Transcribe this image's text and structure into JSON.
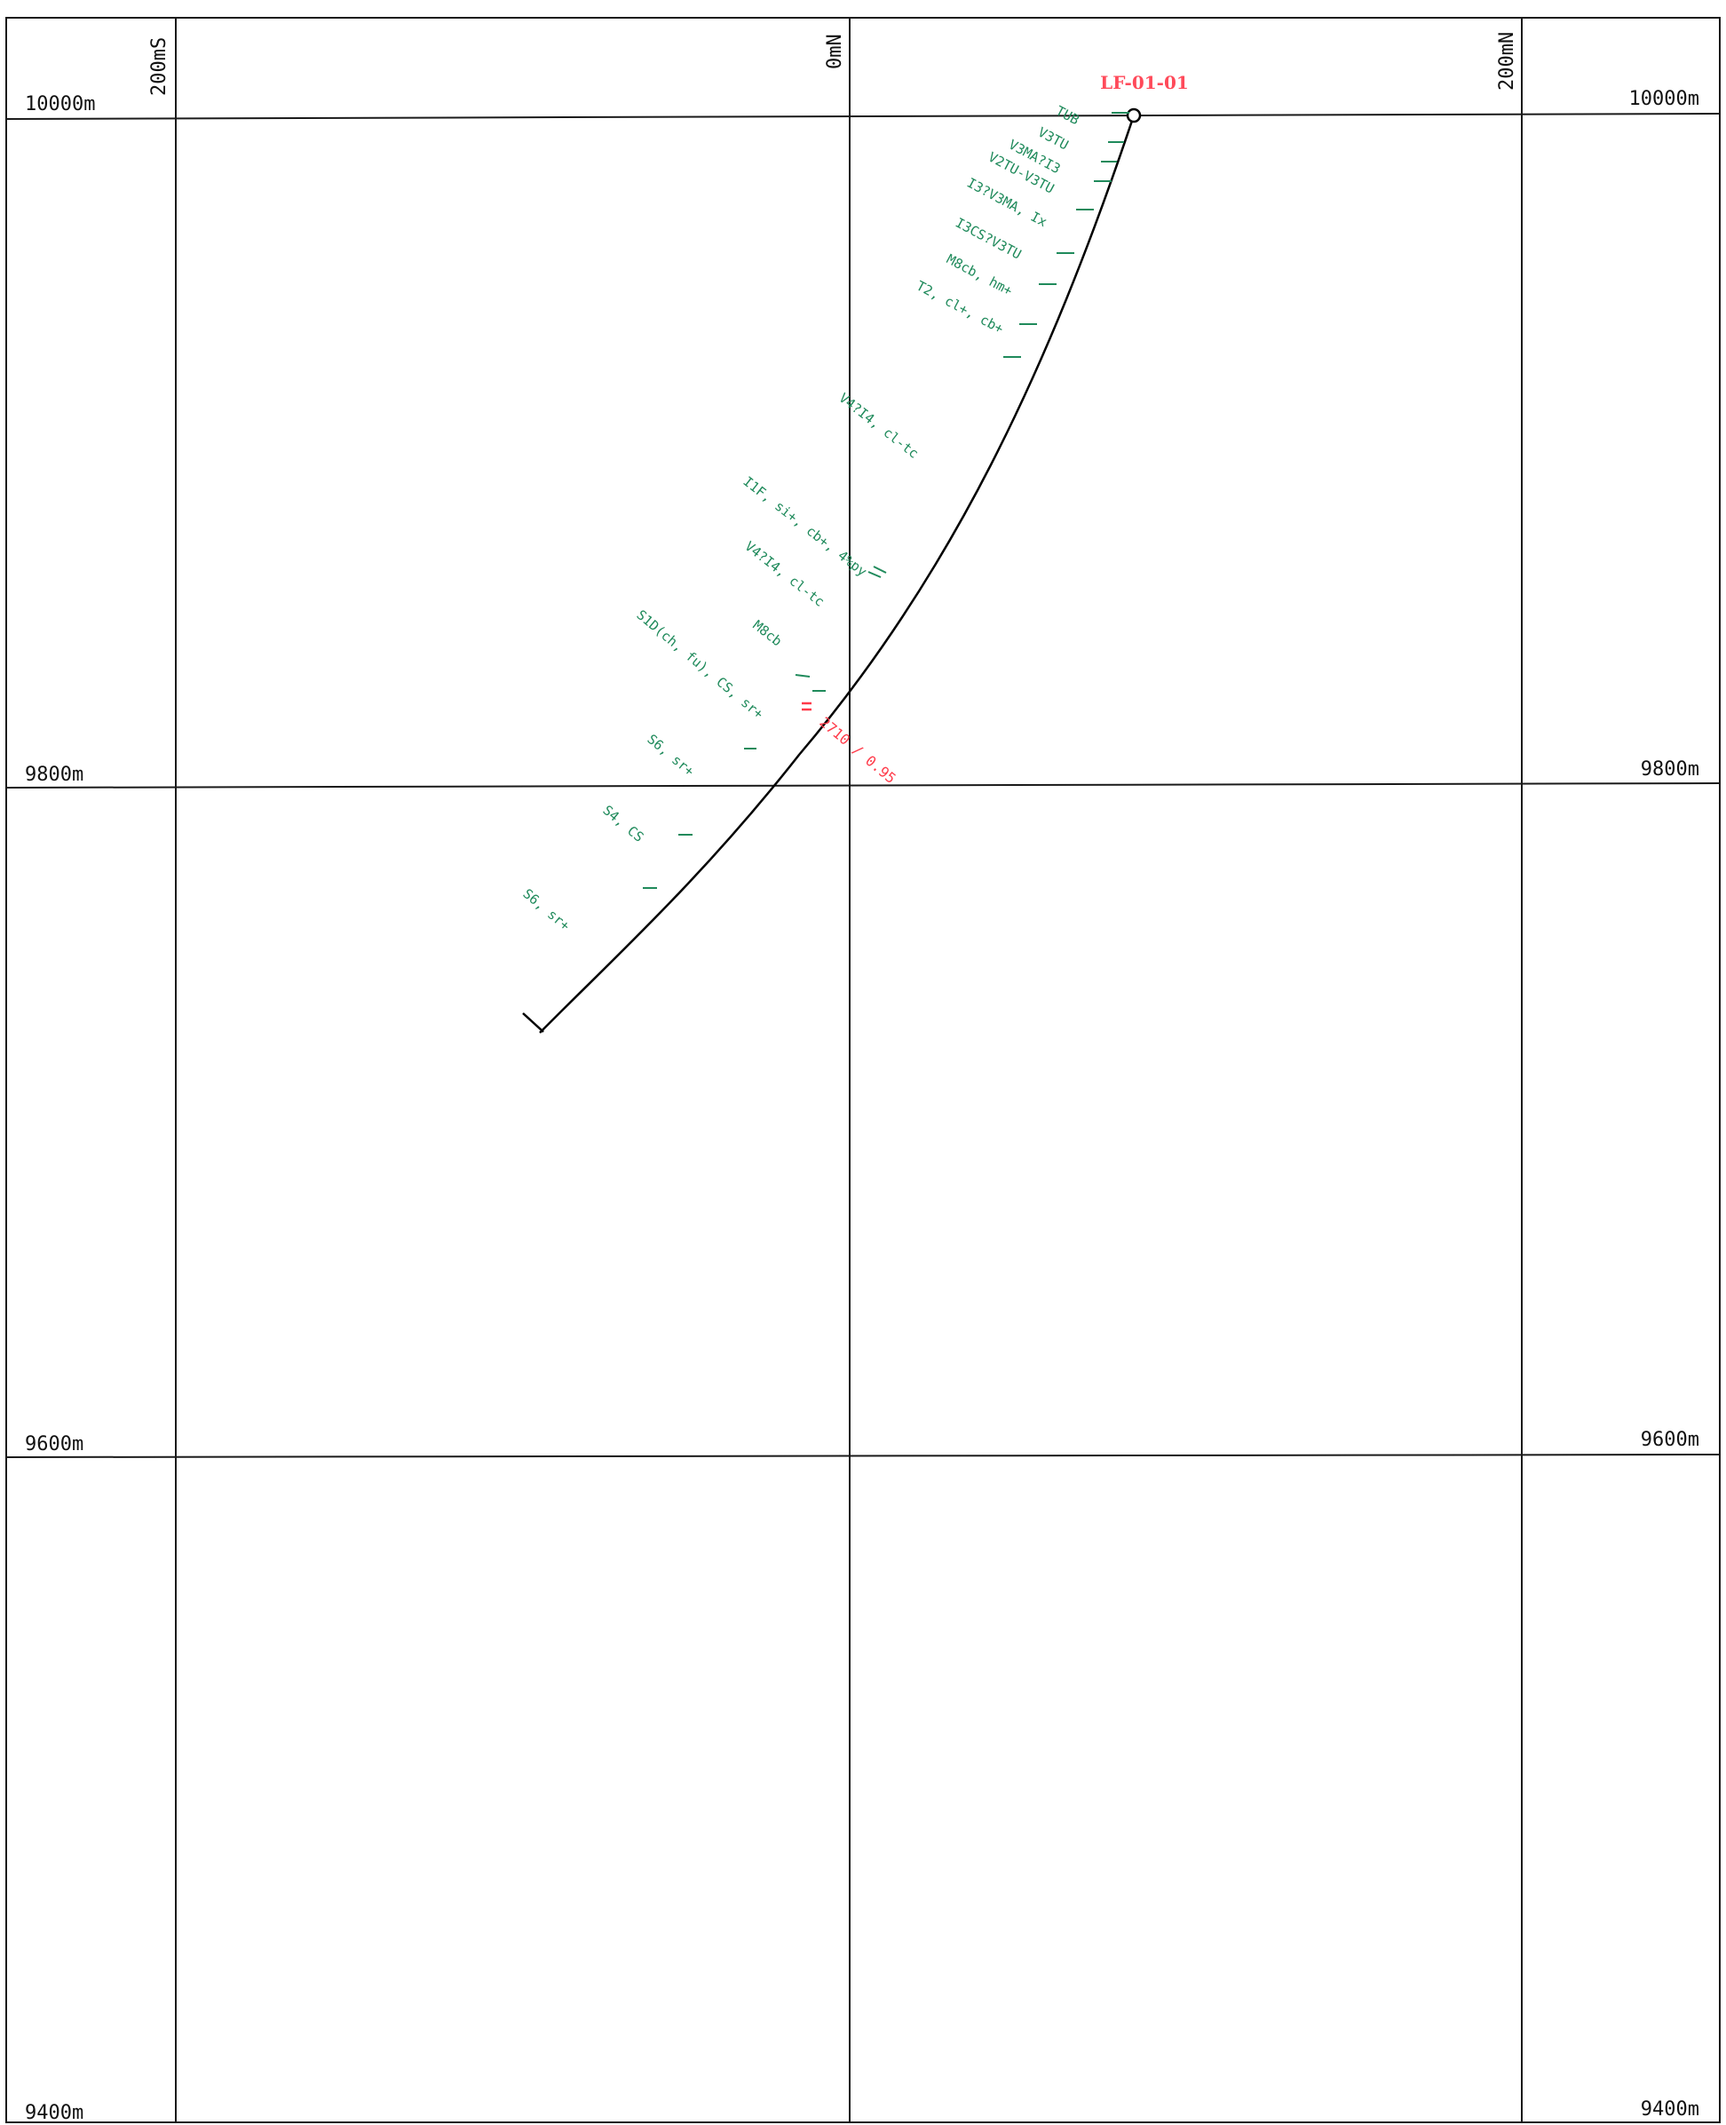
{
  "section": {
    "hole_id": "LF-01-01",
    "colors": {
      "grid": "#1a1a1a",
      "trace": "#000000",
      "geology": "#1f8a5b",
      "assay": "#ff3b4a"
    },
    "elevation_labels": {
      "e10000_left": "10000m",
      "e10000_right": "10000m",
      "e9800_left": "9800m",
      "e9800_right": "9800m",
      "e9600_left": "9600m",
      "e9600_right": "9600m",
      "e9400_left": "9400m",
      "e9400_right": "9400m"
    },
    "northing_labels": {
      "n200s": "200mS",
      "n0": "0mN",
      "n200n": "200mN"
    },
    "geology": {
      "tub": "TUB",
      "v3tu": "V3TU",
      "v3ma_i3": "V3MA?I3",
      "v2tu_v3tu": "V2TU-V3TU",
      "i3_v3ma": "I3?V3MA, Ix",
      "i3cs_v3tu": "I3CS?V3TU",
      "m8cb_hm": "M8cb, hm+",
      "t2_cl_cb": "T2, cl+, cb+",
      "v4_i4_cl_tc_upper": "V4?I4, cl-tc",
      "i1f": "I1F, si+, cb+, 4%py",
      "v4_i4_cl_tc_lower": "V4?I4, cl-tc",
      "m8cb": "M8cb",
      "s1d": "S1D(ch, fu), CS, sr+",
      "s6_sr_upper": "S6, sr+",
      "s4_cs": "S4, CS",
      "s6_sr_lower": "S6, sr+"
    },
    "assay": "2710 / 0.95"
  }
}
